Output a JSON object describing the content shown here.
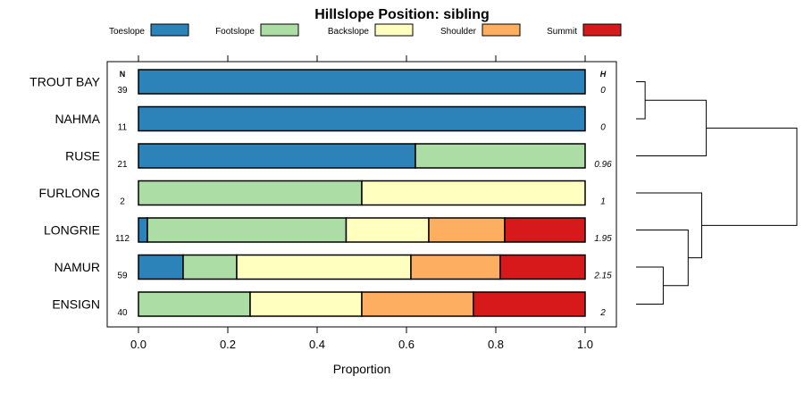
{
  "chart_data": {
    "type": "bar",
    "subtype": "stacked-horizontal-proportion",
    "title": "Hillslope Position: sibling",
    "xlabel": "Proportion",
    "xlim": [
      0,
      1
    ],
    "x_ticks": [
      "0.0",
      "0.2",
      "0.4",
      "0.6",
      "0.8",
      "1.0"
    ],
    "legend_position": "top",
    "n_header": "N",
    "h_header": "H",
    "series": [
      {
        "name": "Toeslope",
        "color": "#2b83ba"
      },
      {
        "name": "Footslope",
        "color": "#abdda4"
      },
      {
        "name": "Backslope",
        "color": "#ffffbf"
      },
      {
        "name": "Shoulder",
        "color": "#fdae61"
      },
      {
        "name": "Summit",
        "color": "#d7191c"
      }
    ],
    "rows": [
      {
        "label": "TROUT BAY",
        "n": "39",
        "h": "0",
        "values": [
          1.0,
          0,
          0,
          0,
          0
        ]
      },
      {
        "label": "NAHMA",
        "n": "11",
        "h": "0",
        "values": [
          1.0,
          0,
          0,
          0,
          0
        ]
      },
      {
        "label": "RUSE",
        "n": "21",
        "h": "0.96",
        "values": [
          0.62,
          0.38,
          0,
          0,
          0
        ]
      },
      {
        "label": "FURLONG",
        "n": "2",
        "h": "1",
        "values": [
          0,
          0.5,
          0.5,
          0,
          0
        ]
      },
      {
        "label": "LONGRIE",
        "n": "112",
        "h": "1.95",
        "values": [
          0.02,
          0.445,
          0.185,
          0.17,
          0.18
        ]
      },
      {
        "label": "NAMUR",
        "n": "59",
        "h": "2.15",
        "values": [
          0.1,
          0.12,
          0.39,
          0.2,
          0.19
        ]
      },
      {
        "label": "ENSIGN",
        "n": "40",
        "h": "2",
        "values": [
          0,
          0.25,
          0.25,
          0.25,
          0.25
        ]
      }
    ],
    "dendrogram": {
      "merges": [
        {
          "a": "r0",
          "b": "r1",
          "height": 0.02
        },
        {
          "a": "r5",
          "b": "r6",
          "height": 0.06
        },
        {
          "a": "r4",
          "b": "m1",
          "height": 0.115
        },
        {
          "a": "r3",
          "b": "m2",
          "height": 0.145
        },
        {
          "a": "r2",
          "b": "m0",
          "height": 0.155
        },
        {
          "a": "m4",
          "b": "m3",
          "height": 0.355
        }
      ]
    }
  }
}
